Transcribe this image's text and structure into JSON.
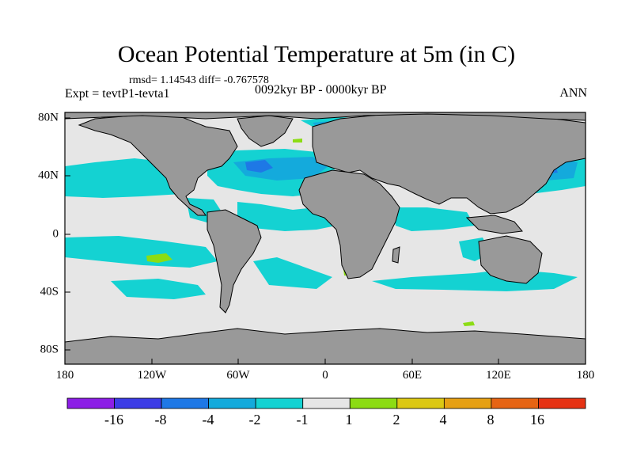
{
  "title": "Ocean Potential Temperature at 5m (in C)",
  "stats": "rmsd= 1.14543 diff= -0.767578",
  "experiment": "Expt = tevtP1-tevta1",
  "period": "0092kyr BP - 0000kyr BP",
  "season": "ANN",
  "lon_labels": [
    "180",
    "120W",
    "60W",
    "0",
    "60E",
    "120E",
    "180"
  ],
  "lat_labels": [
    "80N",
    "40N",
    "0",
    "40S",
    "80S"
  ],
  "colorbar": {
    "labels": [
      "-16",
      "-8",
      "-4",
      "-2",
      "-1",
      "1",
      "2",
      "4",
      "8",
      "16"
    ],
    "colors": [
      "#8c1ee6",
      "#3c3ce6",
      "#1e78e6",
      "#14aadc",
      "#14d2d2",
      "#e6e6e6",
      "#8cdc14",
      "#dcc814",
      "#e6a014",
      "#e66414",
      "#e63214"
    ]
  },
  "palette": {
    "land": "#999999",
    "neutral": "#e6e6e6",
    "cyan": "#14d2d2",
    "light_blue": "#14aadc",
    "blue": "#1e78e6",
    "green": "#8cdc14"
  }
}
